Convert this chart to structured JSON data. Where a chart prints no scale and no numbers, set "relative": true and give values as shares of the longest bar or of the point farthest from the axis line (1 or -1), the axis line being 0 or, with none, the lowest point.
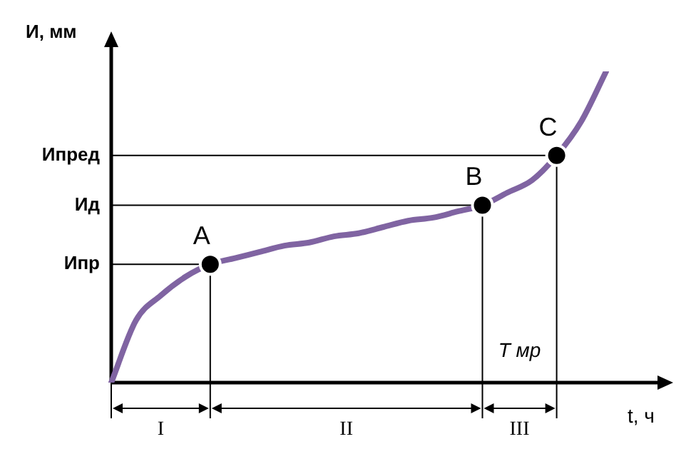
{
  "chart_data": {
    "type": "line",
    "relative": true,
    "xlabel": "t, ч",
    "ylabel": "И, мм",
    "legend": false,
    "categories": [
      null,
      null,
      null,
      null,
      null,
      null,
      null,
      null,
      null,
      null,
      null,
      null,
      null,
      null,
      null,
      null,
      null,
      null,
      null,
      null,
      null
    ],
    "series": [
      {
        "type": "line",
        "color": "#8064a2",
        "values": [
          0,
          0.2,
          0.28,
          0.34,
          0.38,
          0.4,
          0.42,
          0.44,
          0.45,
          0.47,
          0.48,
          0.5,
          0.52,
          0.53,
          0.55,
          0.57,
          0.61,
          0.65,
          0.73,
          0.84,
          1
        ]
      }
    ],
    "ref_lines": [
      {
        "axis": "y",
        "value": 0.38,
        "label": "Ипр"
      },
      {
        "axis": "y",
        "value": 0.57,
        "label": "Ид"
      },
      {
        "axis": "y",
        "value": 0.73,
        "label": "Ипред"
      }
    ],
    "annotations": [
      {
        "text": "A",
        "y": 0.38
      },
      {
        "text": "B",
        "y": 0.57
      },
      {
        "text": "C",
        "y": 0.73
      },
      "I",
      "II",
      "III",
      "Т мр"
    ]
  }
}
